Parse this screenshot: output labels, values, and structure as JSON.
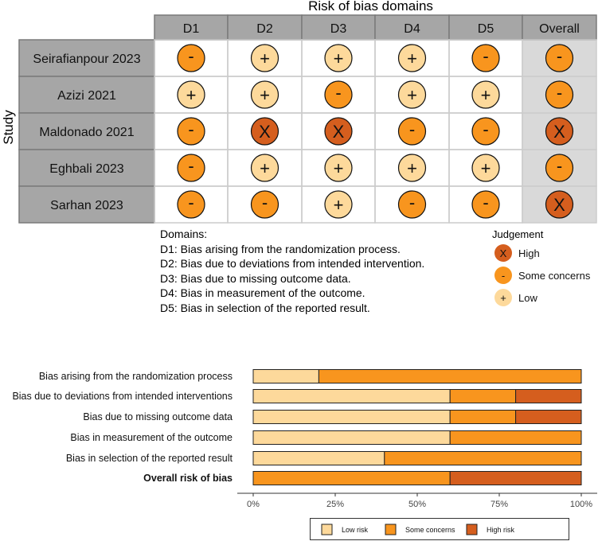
{
  "traffic_light": {
    "title": "Risk of bias domains",
    "y_axis_label": "Study",
    "columns": [
      "D1",
      "D2",
      "D3",
      "D4",
      "D5",
      "Overall"
    ],
    "studies": [
      {
        "name": "Seirafianpour 2023",
        "judgements": [
          "-",
          "+",
          "+",
          "+",
          "-",
          "-"
        ]
      },
      {
        "name": "Azizi 2021",
        "judgements": [
          "+",
          "+",
          "-",
          "+",
          "+",
          "-"
        ]
      },
      {
        "name": "Maldonado 2021",
        "judgements": [
          "-",
          "X",
          "X",
          "-",
          "-",
          "X"
        ]
      },
      {
        "name": "Eghbali 2023",
        "judgements": [
          "-",
          "+",
          "+",
          "+",
          "+",
          "-"
        ]
      },
      {
        "name": "Sarhan 2023",
        "judgements": [
          "-",
          "-",
          "+",
          "-",
          "-",
          "X"
        ]
      }
    ],
    "domains_legend": {
      "heading": "Domains:",
      "items": [
        "D1: Bias arising from the randomization process.",
        "D2: Bias due to deviations from intended intervention.",
        "D3: Bias due to missing outcome data.",
        "D4: Bias in measurement of the outcome.",
        "D5: Bias in selection of the reported result."
      ]
    },
    "judgement_legend": {
      "title": "Judgement",
      "items": [
        {
          "symbol": "X",
          "label": "High",
          "level": "high"
        },
        {
          "symbol": "-",
          "label": "Some concerns",
          "level": "some"
        },
        {
          "symbol": "+",
          "label": "Low",
          "level": "low"
        }
      ]
    },
    "colors": {
      "high": "#D55E1E",
      "some": "#F8951E",
      "low": "#FDD99B",
      "header": "#A6A6A6",
      "overall_bg": "#D9D9D9"
    }
  },
  "chart_data": {
    "type": "bar",
    "orientation": "horizontal",
    "stacked": true,
    "categories": [
      "Bias arising from the randomization process",
      "Bias due to deviations from intended interventions",
      "Bias due to missing outcome data",
      "Bias in measurement of the outcome",
      "Bias in selection of the reported result",
      "Overall risk of bias"
    ],
    "series": [
      {
        "name": "Low risk",
        "color": "#FDD99B",
        "values": [
          20,
          60,
          60,
          60,
          40,
          0
        ]
      },
      {
        "name": "Some concerns",
        "color": "#F8951E",
        "values": [
          80,
          20,
          20,
          40,
          60,
          60
        ]
      },
      {
        "name": "High risk",
        "color": "#D55E1E",
        "values": [
          0,
          20,
          20,
          0,
          0,
          40
        ]
      }
    ],
    "x_ticks": [
      "0%",
      "25%",
      "50%",
      "75%",
      "100%"
    ],
    "xlim": [
      0,
      100
    ],
    "legend_position": "bottom",
    "bold_category": "Overall risk of bias"
  }
}
